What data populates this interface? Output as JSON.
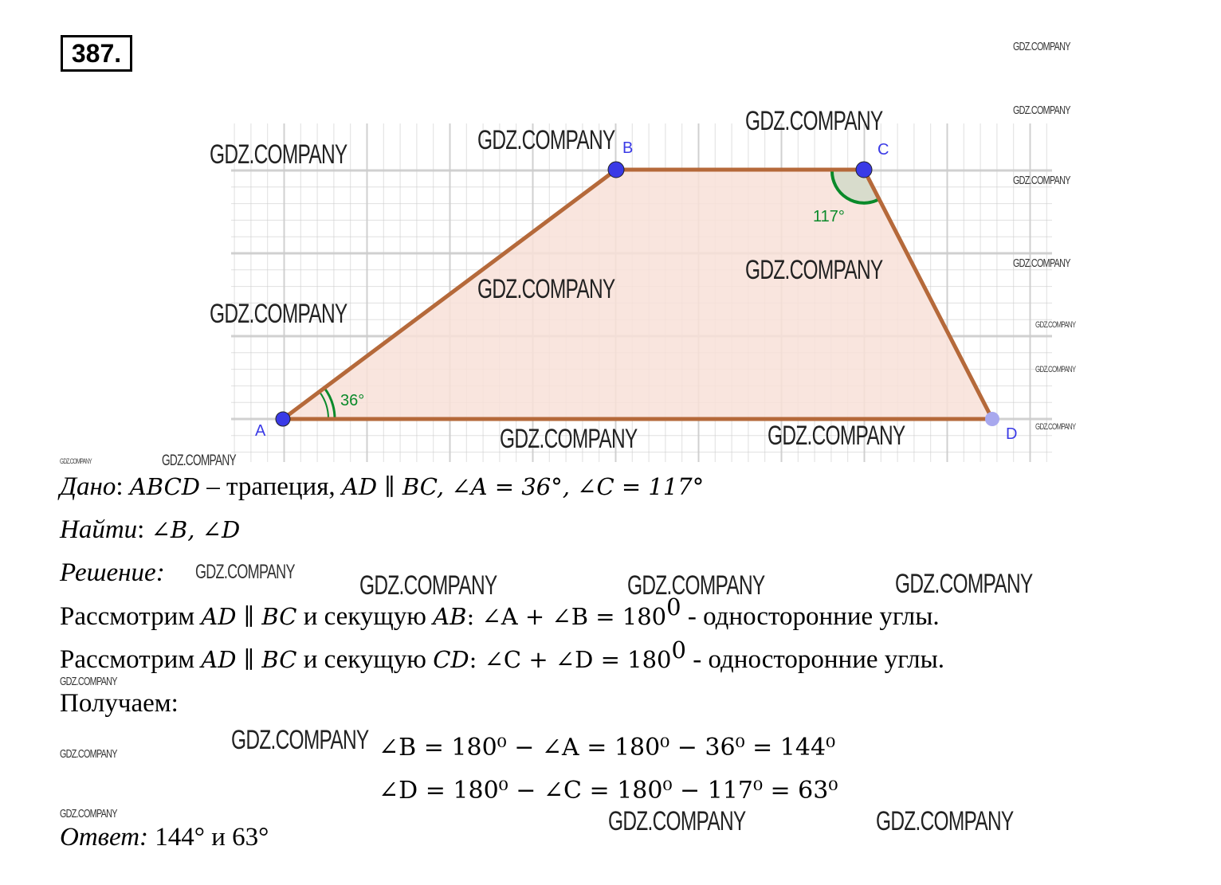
{
  "problem_number": "387.",
  "figure": {
    "vertices": {
      "A": "A",
      "B": "B",
      "C": "C",
      "D": "D"
    },
    "angle_A_label": "36°",
    "angle_C_label": "117°",
    "colors": {
      "sides": "#b5693a",
      "fill": "#f8e0d8",
      "points": "#3a3ae6",
      "angle_marks": "#0a8a2a",
      "grid": "#cccccc"
    }
  },
  "given": {
    "label": "Дано",
    "text_1": "ABCD",
    "text_2": " – трапеция, ",
    "text_3": "AD ∥ BC, ∠A  =  36°, ∠C  =  117°"
  },
  "find": {
    "label": "Найти",
    "text": "∠B, ∠D"
  },
  "solution": {
    "label": "Решение"
  },
  "steps": [
    {
      "pre": "Рассмотрим ",
      "math1": "AD ∥ BC",
      "mid": " и секущую ",
      "math2": "AB",
      "eq": ": ∠A + ∠B = 180",
      "post": " - односторонние углы."
    },
    {
      "pre": "Рассмотрим ",
      "math1": "AD ∥ BC",
      "mid": " и секущую ",
      "math2": "CD",
      "eq": ": ∠C + ∠D = 180",
      "post": " - односторонние углы."
    }
  ],
  "obtain_label": "Получаем:",
  "equations": [
    "∠B = 180⁰ − ∠A = 180⁰ − 36⁰ = 144⁰",
    "∠D = 180⁰ − ∠C = 180⁰ − 117⁰ = 63⁰"
  ],
  "answer": {
    "label": "Ответ:",
    "text": " 144° и 63°"
  },
  "watermark": "GDZ.COMPANY",
  "sup0": "0"
}
